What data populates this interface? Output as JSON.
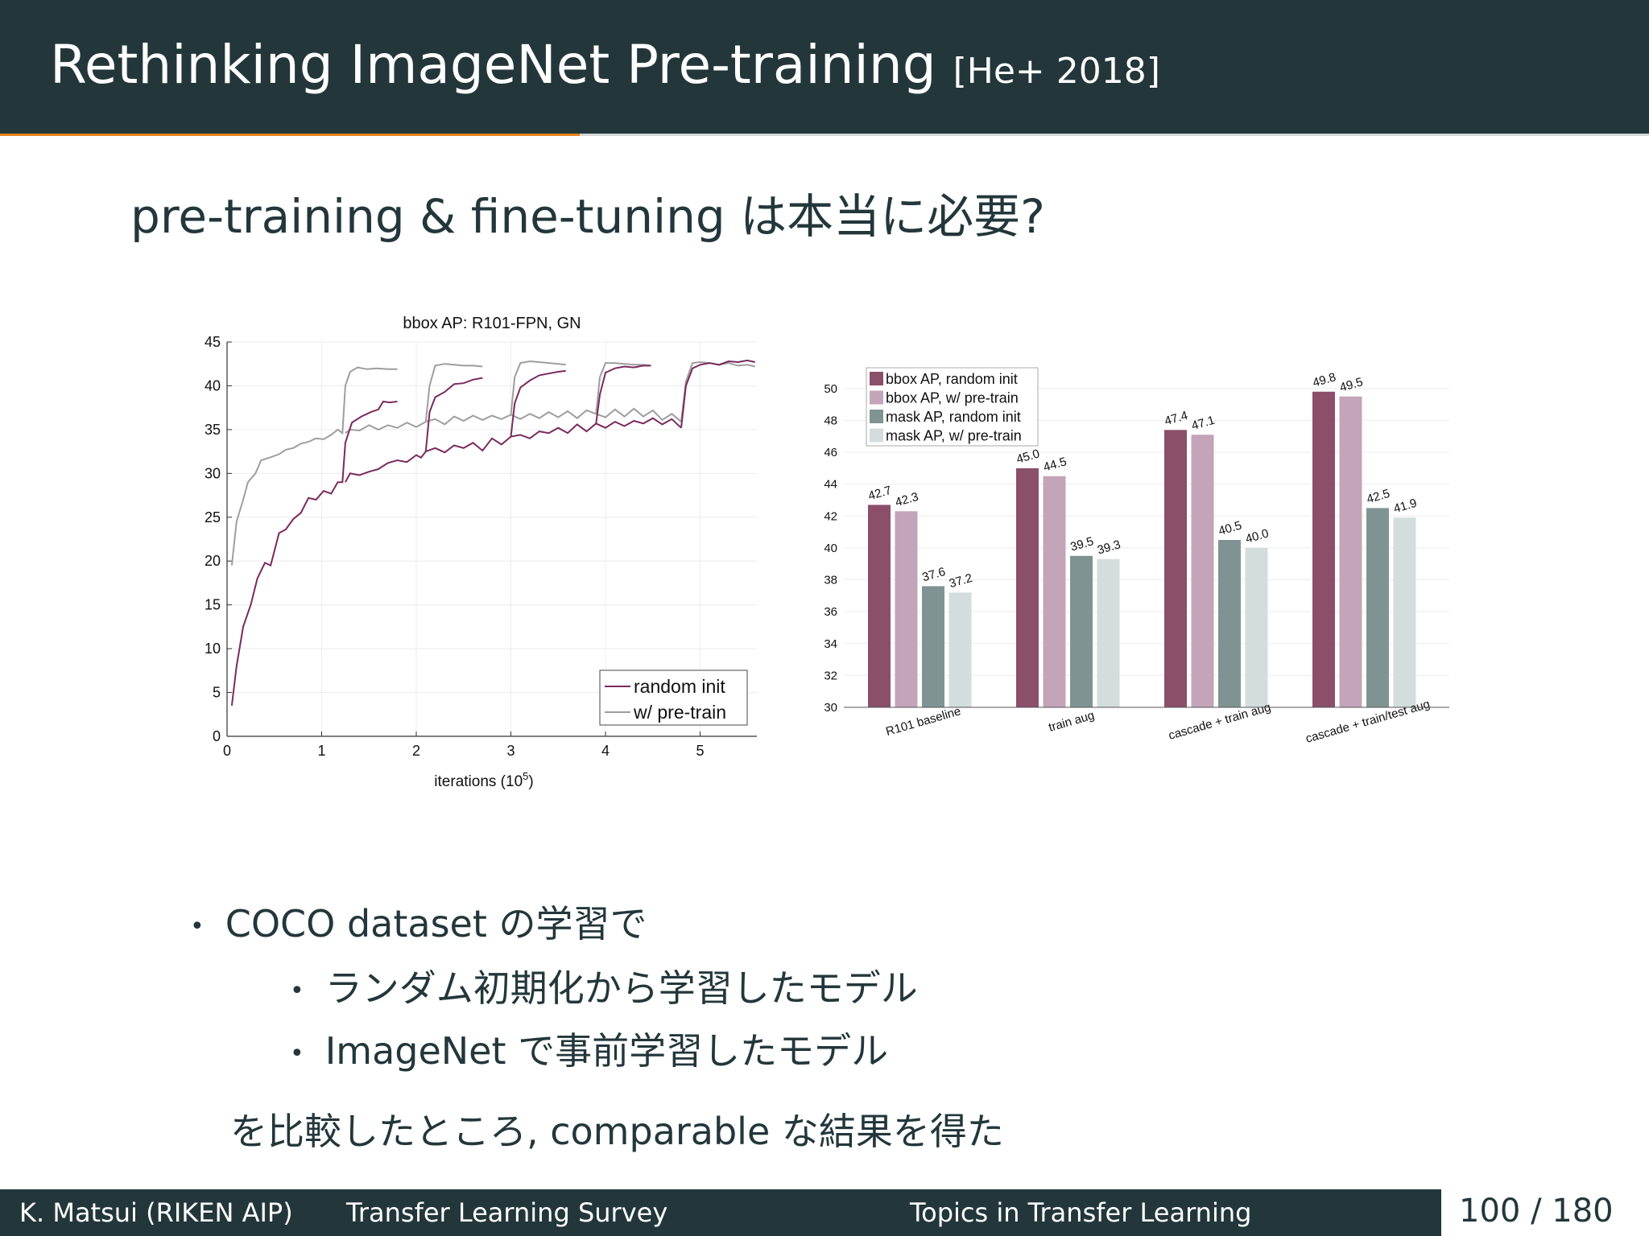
{
  "slide": {
    "title": "Rethinking ImageNet Pre-training",
    "title_cite": "[He+ 2018]",
    "subtitle": "pre-training & fine-tuning は本当に必要?",
    "bullets": [
      "COCO dataset の学習で",
      "ランダム初期化から学習したモデル",
      "ImageNet で事前学習したモデル"
    ],
    "conclusion": "を比較したところ, comparable な結果を得た"
  },
  "footer": {
    "author": "K. Matsui (RIKEN AIP)",
    "talk": "Transfer Learning Survey",
    "section": "Topics in Transfer Learning",
    "page": "100 / 180"
  },
  "colors": {
    "header_bg": "#23373b",
    "accent": "#eb811b",
    "random_init_line": "#7a2a5e",
    "pretrain_line": "#9e9e9e",
    "bbox_random": "#8c4f6a",
    "bbox_pretrain": "#c4a4b8",
    "mask_random": "#7f9492",
    "mask_pretrain": "#d4dddd"
  },
  "chart_data": [
    {
      "type": "line",
      "title": "bbox AP: R101-FPN, GN",
      "xlabel": "iterations (10",
      "xlabel_sup": "5",
      "xlabel_end": ")",
      "xlim": [
        0,
        5.6
      ],
      "ylim": [
        0,
        45
      ],
      "xticks": [
        "0",
        "1",
        "2",
        "3",
        "4",
        "5"
      ],
      "yticks": [
        "0",
        "5",
        "10",
        "15",
        "20",
        "25",
        "30",
        "35",
        "40",
        "45"
      ],
      "legend_position": "bottom-right",
      "grid": true,
      "series": [
        {
          "name": "random init",
          "segments": [
            [
              [
                0.05,
                3.5
              ],
              [
                0.1,
                8
              ],
              [
                0.17,
                12.5
              ],
              [
                0.25,
                15
              ],
              [
                0.32,
                18
              ],
              [
                0.4,
                19.8
              ],
              [
                0.46,
                19.5
              ],
              [
                0.55,
                23.2
              ],
              [
                0.62,
                23.6
              ],
              [
                0.7,
                24.8
              ],
              [
                0.78,
                25.5
              ],
              [
                0.86,
                27.2
              ],
              [
                0.94,
                27
              ],
              [
                1.02,
                28
              ],
              [
                1.1,
                27.7
              ],
              [
                1.17,
                29
              ],
              [
                1.22,
                29
              ],
              [
                1.25,
                33.5
              ],
              [
                1.32,
                35.8
              ],
              [
                1.42,
                36.5
              ],
              [
                1.52,
                37
              ],
              [
                1.6,
                37.3
              ],
              [
                1.65,
                38.2
              ],
              [
                1.72,
                38.1
              ],
              [
                1.8,
                38.2
              ]
            ],
            [
              [
                1.25,
                29
              ],
              [
                1.3,
                30
              ],
              [
                1.4,
                29.8
              ],
              [
                1.5,
                30.2
              ],
              [
                1.6,
                30.5
              ],
              [
                1.7,
                31.2
              ],
              [
                1.8,
                31.5
              ],
              [
                1.9,
                31.3
              ],
              [
                2.0,
                32.1
              ],
              [
                2.05,
                31.8
              ],
              [
                2.1,
                32.5
              ]
            ],
            [
              [
                2.1,
                32.5
              ],
              [
                2.14,
                37
              ],
              [
                2.2,
                38.7
              ],
              [
                2.3,
                39.3
              ],
              [
                2.4,
                40.2
              ],
              [
                2.5,
                40.3
              ],
              [
                2.6,
                40.7
              ],
              [
                2.7,
                40.9
              ]
            ],
            [
              [
                2.1,
                32.5
              ],
              [
                2.2,
                32.9
              ],
              [
                2.3,
                32.4
              ],
              [
                2.4,
                33.2
              ],
              [
                2.5,
                32.9
              ],
              [
                2.6,
                33.5
              ],
              [
                2.7,
                32.6
              ],
              [
                2.8,
                34
              ],
              [
                2.9,
                33.3
              ],
              [
                3.0,
                34.2
              ]
            ],
            [
              [
                3.0,
                34.2
              ],
              [
                3.04,
                38
              ],
              [
                3.1,
                39.8
              ],
              [
                3.2,
                40.6
              ],
              [
                3.3,
                41.2
              ],
              [
                3.4,
                41.4
              ],
              [
                3.5,
                41.6
              ],
              [
                3.58,
                41.7
              ]
            ],
            [
              [
                3.0,
                34.2
              ],
              [
                3.1,
                34.4
              ],
              [
                3.2,
                34
              ],
              [
                3.3,
                34.8
              ],
              [
                3.4,
                34.6
              ],
              [
                3.5,
                35.2
              ],
              [
                3.6,
                34.6
              ],
              [
                3.7,
                35.6
              ],
              [
                3.8,
                34.8
              ],
              [
                3.9,
                35.7
              ]
            ],
            [
              [
                3.9,
                35.7
              ],
              [
                3.94,
                39
              ],
              [
                4.0,
                41.5
              ],
              [
                4.1,
                42
              ],
              [
                4.2,
                42.2
              ],
              [
                4.3,
                42.1
              ],
              [
                4.4,
                42.3
              ],
              [
                4.48,
                42.3
              ]
            ],
            [
              [
                3.9,
                35.7
              ],
              [
                4.0,
                35.2
              ],
              [
                4.1,
                35.9
              ],
              [
                4.2,
                35.4
              ],
              [
                4.3,
                36
              ],
              [
                4.4,
                35.7
              ],
              [
                4.5,
                36.3
              ],
              [
                4.6,
                35.6
              ],
              [
                4.7,
                36.2
              ],
              [
                4.8,
                35.2
              ]
            ],
            [
              [
                4.8,
                35.2
              ],
              [
                4.85,
                40
              ],
              [
                4.92,
                42
              ],
              [
                5.0,
                42.4
              ],
              [
                5.1,
                42.6
              ],
              [
                5.2,
                42.4
              ],
              [
                5.3,
                42.8
              ],
              [
                5.4,
                42.7
              ],
              [
                5.5,
                42.9
              ],
              [
                5.58,
                42.7
              ]
            ]
          ]
        },
        {
          "name": "w/ pre-train",
          "segments": [
            [
              [
                0.05,
                19.5
              ],
              [
                0.1,
                24.5
              ],
              [
                0.17,
                27
              ],
              [
                0.22,
                29
              ],
              [
                0.3,
                30
              ],
              [
                0.36,
                31.5
              ],
              [
                0.45,
                31.8
              ],
              [
                0.55,
                32.2
              ],
              [
                0.62,
                32.7
              ],
              [
                0.7,
                32.9
              ],
              [
                0.78,
                33.4
              ],
              [
                0.86,
                33.6
              ],
              [
                0.94,
                34
              ],
              [
                1.02,
                33.9
              ],
              [
                1.1,
                34.4
              ],
              [
                1.17,
                35
              ],
              [
                1.22,
                34.6
              ],
              [
                1.25,
                40
              ],
              [
                1.3,
                41.6
              ],
              [
                1.38,
                42.1
              ],
              [
                1.48,
                41.9
              ],
              [
                1.58,
                42
              ],
              [
                1.7,
                41.9
              ],
              [
                1.8,
                41.9
              ]
            ],
            [
              [
                1.25,
                34.6
              ],
              [
                1.3,
                35
              ],
              [
                1.4,
                34.9
              ],
              [
                1.5,
                35.5
              ],
              [
                1.6,
                35
              ],
              [
                1.7,
                35.5
              ],
              [
                1.8,
                35.2
              ],
              [
                1.9,
                35.8
              ],
              [
                2.0,
                35.3
              ],
              [
                2.1,
                35.9
              ]
            ],
            [
              [
                2.1,
                35.9
              ],
              [
                2.14,
                40
              ],
              [
                2.2,
                42.3
              ],
              [
                2.3,
                42.5
              ],
              [
                2.4,
                42.4
              ],
              [
                2.5,
                42.3
              ],
              [
                2.6,
                42.3
              ],
              [
                2.7,
                42.2
              ]
            ],
            [
              [
                2.1,
                35.9
              ],
              [
                2.2,
                36.2
              ],
              [
                2.3,
                35.6
              ],
              [
                2.4,
                36.5
              ],
              [
                2.5,
                36
              ],
              [
                2.6,
                36.6
              ],
              [
                2.7,
                36.1
              ],
              [
                2.8,
                36.6
              ],
              [
                2.9,
                36.2
              ],
              [
                3.0,
                36.7
              ]
            ],
            [
              [
                3.0,
                36.7
              ],
              [
                3.04,
                41
              ],
              [
                3.1,
                42.6
              ],
              [
                3.2,
                42.8
              ],
              [
                3.3,
                42.7
              ],
              [
                3.4,
                42.6
              ],
              [
                3.5,
                42.5
              ],
              [
                3.58,
                42.4
              ]
            ],
            [
              [
                3.0,
                36.7
              ],
              [
                3.1,
                36.2
              ],
              [
                3.2,
                36.8
              ],
              [
                3.3,
                36.3
              ],
              [
                3.4,
                37
              ],
              [
                3.5,
                36.4
              ],
              [
                3.6,
                37.1
              ],
              [
                3.7,
                36.3
              ],
              [
                3.8,
                37.2
              ],
              [
                3.9,
                36.8
              ]
            ],
            [
              [
                3.9,
                36.8
              ],
              [
                3.94,
                41
              ],
              [
                4.0,
                42.6
              ],
              [
                4.1,
                42.6
              ],
              [
                4.2,
                42.5
              ],
              [
                4.3,
                42.4
              ],
              [
                4.4,
                42.4
              ],
              [
                4.48,
                42.3
              ]
            ],
            [
              [
                3.9,
                36.8
              ],
              [
                4.0,
                36.4
              ],
              [
                4.1,
                37.3
              ],
              [
                4.2,
                36.5
              ],
              [
                4.3,
                37.4
              ],
              [
                4.4,
                36.5
              ],
              [
                4.5,
                37.2
              ],
              [
                4.6,
                36.1
              ],
              [
                4.7,
                36.8
              ],
              [
                4.8,
                35.9
              ]
            ],
            [
              [
                4.8,
                35.9
              ],
              [
                4.85,
                40.5
              ],
              [
                4.92,
                42.6
              ],
              [
                5.0,
                42.7
              ],
              [
                5.1,
                42.6
              ],
              [
                5.2,
                42.4
              ],
              [
                5.3,
                42.6
              ],
              [
                5.4,
                42.3
              ],
              [
                5.5,
                42.4
              ],
              [
                5.58,
                42.2
              ]
            ]
          ]
        }
      ]
    },
    {
      "type": "bar",
      "categories": [
        "R101 baseline",
        "train aug",
        "cascade + train aug",
        "cascade + train/test aug"
      ],
      "ylim": [
        30,
        51
      ],
      "yticks": [
        "30",
        "32",
        "34",
        "36",
        "38",
        "40",
        "42",
        "44",
        "46",
        "48",
        "50"
      ],
      "legend_position": "top-left",
      "grid": true,
      "series": [
        {
          "name": "bbox AP, random init",
          "values": [
            42.7,
            45.0,
            47.4,
            49.8
          ],
          "labels": [
            "42.7",
            "45.0",
            "47.4",
            "49.8"
          ]
        },
        {
          "name": "bbox AP, w/ pre-train",
          "values": [
            42.3,
            44.5,
            47.1,
            49.5
          ],
          "labels": [
            "42.3",
            "44.5",
            "47.1",
            "49.5"
          ]
        },
        {
          "name": "mask AP, random init",
          "values": [
            37.6,
            39.5,
            40.5,
            42.5
          ],
          "labels": [
            "37.6",
            "39.5",
            "40.5",
            "42.5"
          ]
        },
        {
          "name": "mask AP, w/ pre-train",
          "values": [
            37.2,
            39.3,
            40.0,
            41.9
          ],
          "labels": [
            "37.2",
            "39.3",
            "40.0",
            "41.9"
          ]
        }
      ]
    }
  ]
}
